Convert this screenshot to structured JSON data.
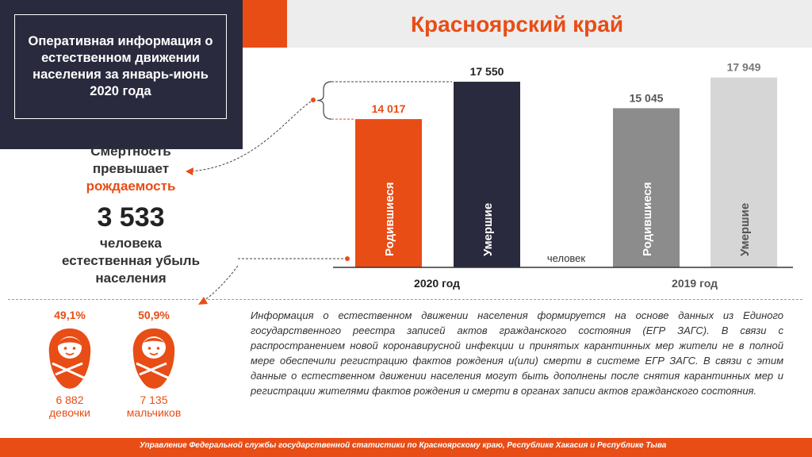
{
  "header": {
    "title": "Оперативная информация о естественном движении населения за январь-июнь 2020 года",
    "region": "Красноярский край"
  },
  "summary": {
    "line1": "Смертность",
    "line2": "превышает",
    "line3": "рождаемость",
    "number": "3 533",
    "sub1": "человека",
    "sub2": "естественная убыль",
    "sub3": "населения"
  },
  "gender": {
    "girls": {
      "percent": "49,1%",
      "count": "6 882",
      "label": "девочки"
    },
    "boys": {
      "percent": "50,9%",
      "count": "7 135",
      "label": "мальчиков"
    }
  },
  "info_text": "Информация о естественном движении населения формируется на основе данных из Единого государственного реестра записей актов гражданского состояния (ЕГР ЗАГС). В связи с распространением новой коронавирусной инфекции и принятых карантинных мер жители не в полной мере обеспечили регистрацию фактов рождения и(или) смерти в системе ЕГР ЗАГС. В связи с этим данные о естественном движении населения могут быть дополнены после снятия карантинных мер и регистрации жителями фактов рождения и смерти в органах записи актов гражданского состояния.",
  "footer": "Управление Федеральной службы государственной статистики по Красноярскому краю, Республике Хакасия и Республике Тыва",
  "colors": {
    "accent": "#e84d16",
    "dark": "#2a2a3e",
    "grey": "#8c8c8c",
    "light_grey": "#d6d6d6"
  },
  "chart_data": {
    "type": "bar",
    "unit_label": "человек",
    "ylim": [
      0,
      19500
    ],
    "groups": [
      {
        "label": "2020 год",
        "bars": [
          {
            "label": "Родившиеся",
            "value": 14017,
            "value_label": "14 017",
            "color": "#e84d16",
            "value_color": "#e84d16"
          },
          {
            "label": "Умершие",
            "value": 17550,
            "value_label": "17 550",
            "color": "#2a2a3e",
            "value_color": "#222222"
          }
        ]
      },
      {
        "label": "2019 год",
        "bars": [
          {
            "label": "Родившиеся",
            "value": 15045,
            "value_label": "15 045",
            "color": "#8c8c8c",
            "value_color": "#555555"
          },
          {
            "label": "Умершие",
            "value": 17949,
            "value_label": "17 949",
            "color": "#d6d6d6",
            "value_color": "#777777"
          }
        ]
      }
    ]
  }
}
